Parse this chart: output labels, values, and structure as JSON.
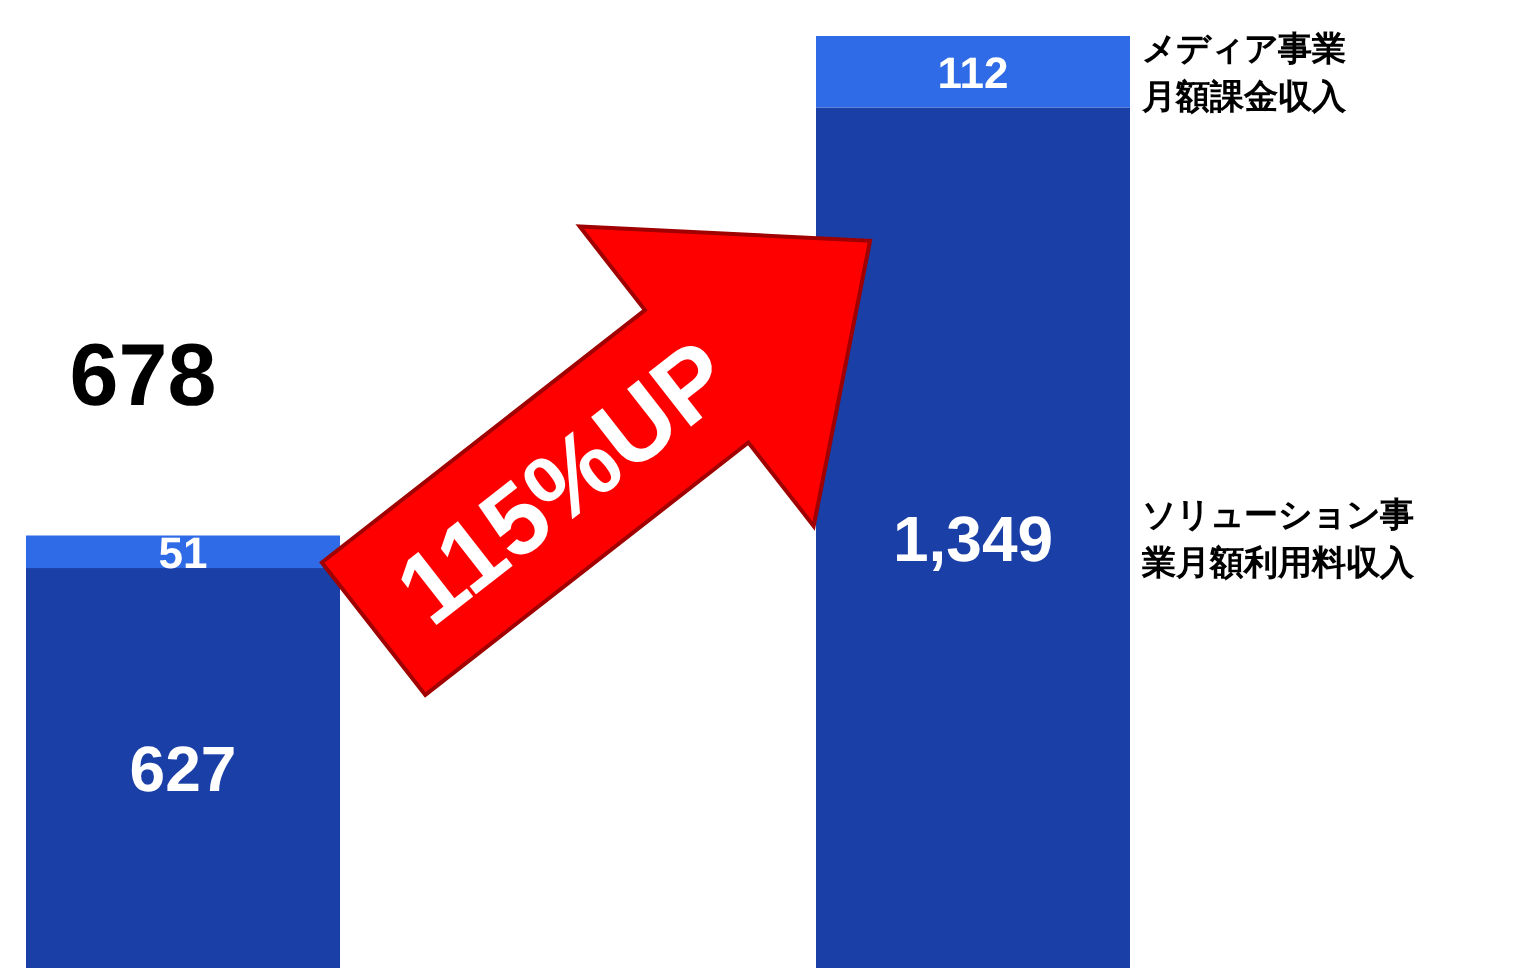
{
  "chart_data": {
    "type": "bar",
    "stacked": true,
    "categories": [
      null,
      null
    ],
    "series": [
      {
        "name": "ソリューション事業月額利用料収入",
        "color": "#1a3fa6",
        "values": [
          627,
          1349
        ],
        "value_labels": [
          "627",
          "1,349"
        ]
      },
      {
        "name": "メディア事業月額課金収入",
        "color": "#2f6be6",
        "values": [
          51,
          112
        ],
        "value_labels": [
          "51",
          "112"
        ]
      }
    ],
    "totals": [
      "678",
      null
    ],
    "legend": "right",
    "annotations": [
      "115%UP"
    ]
  }
}
